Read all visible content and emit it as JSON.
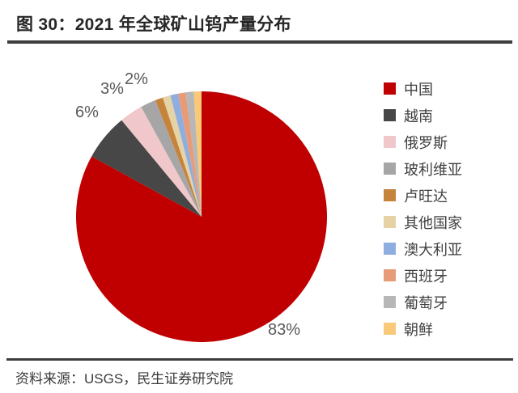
{
  "figure": {
    "title": "图 30：2021 年全球矿山钨产量分布",
    "source": "资料来源：USGS，民生证券研究院"
  },
  "chart_data": {
    "type": "pie",
    "title": "2021 年全球矿山钨产量分布",
    "unit": "percent",
    "total": 100,
    "start_angle_deg": 0,
    "direction": "clockwise",
    "legend_position": "right",
    "slices": [
      {
        "name": "china",
        "label": "中国",
        "value": 83,
        "color": "#C00000",
        "pct_label": "83%"
      },
      {
        "name": "vietnam",
        "label": "越南",
        "value": 6,
        "color": "#474747",
        "pct_label": "6%"
      },
      {
        "name": "russia",
        "label": "俄罗斯",
        "value": 3,
        "color": "#F0C7CB",
        "pct_label": "3%"
      },
      {
        "name": "bolivia",
        "label": "玻利维亚",
        "value": 2,
        "color": "#A6A6A6",
        "pct_label": "2%"
      },
      {
        "name": "rwanda",
        "label": "卢旺达",
        "value": 1,
        "color": "#C5833C"
      },
      {
        "name": "other-countries",
        "label": "其他国家",
        "value": 1,
        "color": "#E5D3A6"
      },
      {
        "name": "australia",
        "label": "澳大利亚",
        "value": 1,
        "color": "#8FAEE0"
      },
      {
        "name": "spain",
        "label": "西班牙",
        "value": 1,
        "color": "#E89B78"
      },
      {
        "name": "portugal",
        "label": "葡萄牙",
        "value": 1,
        "color": "#B7B7B7"
      },
      {
        "name": "north-korea",
        "label": "朝鲜",
        "value": 1,
        "color": "#F8C979"
      }
    ]
  }
}
